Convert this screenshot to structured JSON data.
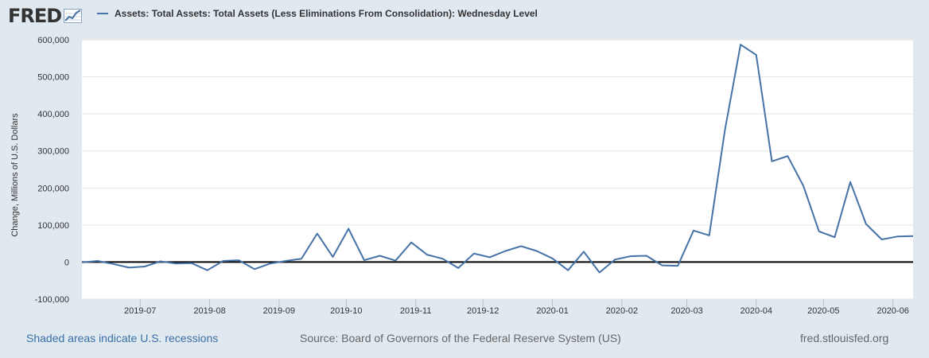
{
  "header": {
    "logo_text": "FRED",
    "logo_icon": "line-chart-icon"
  },
  "legend": {
    "label": "Assets: Total Assets: Total Assets (Less Eliminations From Consolidation): Wednesday Level"
  },
  "footer": {
    "recessions_link": "Shaded areas indicate U.S. recessions",
    "source": "Source: Board of Governors of the Federal Reserve System (US)",
    "site": "fred.stlouisfed.org"
  },
  "colors": {
    "background": "#e1e9f0",
    "plot": "#ffffff",
    "series": "#4572a7",
    "zero_line": "#000000",
    "grid": "#e6e6e6",
    "link": "#3a6fa5"
  },
  "chart_data": {
    "type": "line",
    "title": "",
    "xlabel": "",
    "ylabel": "Change, Millions of U.S. Dollars",
    "ylim": [
      -100000,
      600000
    ],
    "yticks": [
      -100000,
      0,
      100000,
      200000,
      300000,
      400000,
      500000,
      600000
    ],
    "ytick_labels": [
      "-100,000",
      "0",
      "100,000",
      "200,000",
      "300,000",
      "400,000",
      "500,000",
      "600,000"
    ],
    "xlim": [
      "2019-06-05",
      "2020-06-10"
    ],
    "xticks": [
      "2019-07-01",
      "2019-08-01",
      "2019-09-01",
      "2019-10-01",
      "2019-11-01",
      "2019-12-01",
      "2020-01-01",
      "2020-02-01",
      "2020-03-01",
      "2020-04-01",
      "2020-05-01",
      "2020-06-01"
    ],
    "xtick_labels": [
      "2019-07",
      "2019-08",
      "2019-09",
      "2019-10",
      "2019-11",
      "2019-12",
      "2020-01",
      "2020-02",
      "2020-03",
      "2020-04",
      "2020-05",
      "2020-06"
    ],
    "grid": "horizontal",
    "zero_line": true,
    "series": [
      {
        "name": "Assets: Total Assets: Total Assets (Less Eliminations From Consolidation): Wednesday Level",
        "x": [
          "2019-06-05",
          "2019-06-12",
          "2019-06-19",
          "2019-06-26",
          "2019-07-03",
          "2019-07-10",
          "2019-07-17",
          "2019-07-24",
          "2019-07-31",
          "2019-08-07",
          "2019-08-14",
          "2019-08-21",
          "2019-08-28",
          "2019-09-04",
          "2019-09-11",
          "2019-09-18",
          "2019-09-25",
          "2019-10-02",
          "2019-10-09",
          "2019-10-16",
          "2019-10-23",
          "2019-10-30",
          "2019-11-06",
          "2019-11-13",
          "2019-11-20",
          "2019-11-27",
          "2019-12-04",
          "2019-12-11",
          "2019-12-18",
          "2019-12-25",
          "2020-01-01",
          "2020-01-08",
          "2020-01-15",
          "2020-01-22",
          "2020-01-29",
          "2020-02-05",
          "2020-02-12",
          "2020-02-19",
          "2020-02-26",
          "2020-03-04",
          "2020-03-11",
          "2020-03-18",
          "2020-03-25",
          "2020-04-01",
          "2020-04-08",
          "2020-04-15",
          "2020-04-22",
          "2020-04-29",
          "2020-05-06",
          "2020-05-13",
          "2020-05-20",
          "2020-05-27",
          "2020-06-03",
          "2020-06-10"
        ],
        "values": [
          -1000,
          3000,
          -5000,
          -15000,
          -12000,
          2000,
          -4000,
          -3000,
          -22000,
          3000,
          5000,
          -19000,
          -4000,
          3000,
          9000,
          77000,
          14000,
          90000,
          5000,
          17000,
          4000,
          53000,
          20000,
          9000,
          -16000,
          23000,
          13000,
          30000,
          43000,
          30000,
          10000,
          -22000,
          28000,
          -28000,
          7000,
          16000,
          17000,
          -9000,
          -10000,
          85000,
          72000,
          356000,
          587000,
          559000,
          272000,
          286000,
          206000,
          83000,
          67000,
          216000,
          103000,
          61000,
          69000,
          70000
        ]
      }
    ]
  }
}
